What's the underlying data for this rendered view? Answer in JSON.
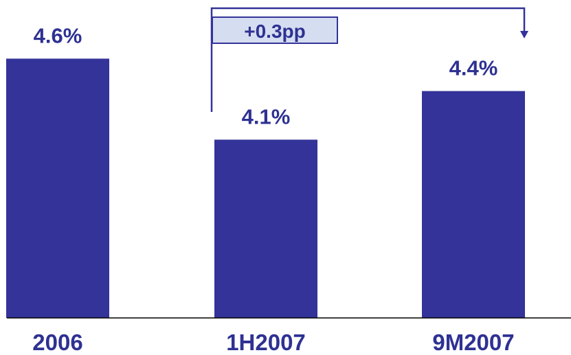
{
  "colors": {
    "bar": "#333399",
    "text": "#2E3192",
    "bracket": "#333399",
    "callout_bg": "#D5DDF1",
    "axis": "#000000"
  },
  "chart_data": {
    "type": "bar",
    "categories": [
      "2006",
      "1H2007",
      "9M2007"
    ],
    "values": [
      4.6,
      4.1,
      4.4
    ],
    "data_labels": [
      "4.6%",
      "4.1%",
      "4.4%"
    ],
    "ylim": [
      3.0,
      4.8
    ],
    "grid": false,
    "legend": "none",
    "annotations": [
      {
        "text": "+0.3pp",
        "from": "1H2007",
        "to": "9M2007",
        "style": "bracket-arrow"
      }
    ]
  }
}
